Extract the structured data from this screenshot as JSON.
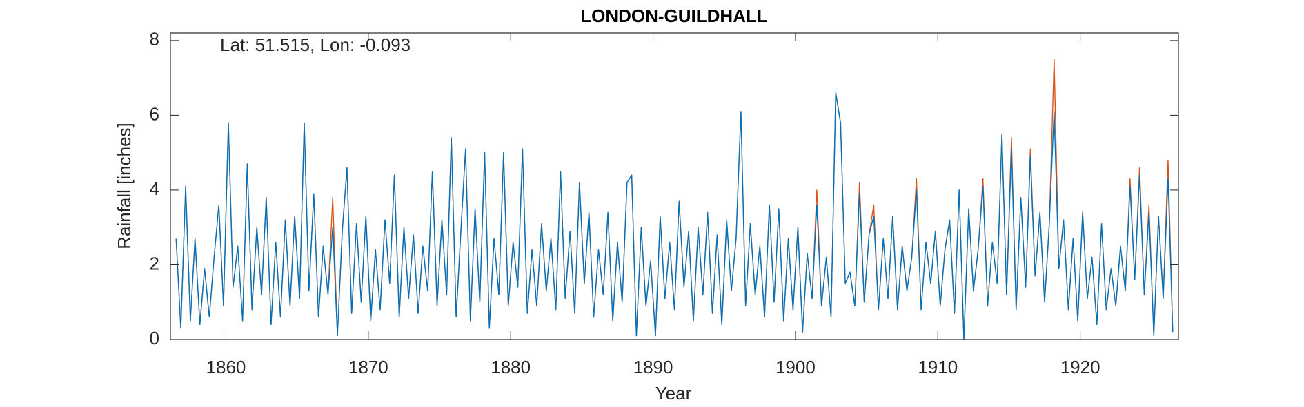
{
  "chart_data": {
    "type": "line",
    "title": "LONDON-GUILDHALL",
    "annotation": "Lat: 51.515, Lon: -0.093",
    "xlabel": "Year",
    "ylabel": "Rainfall [inches]",
    "xlim": [
      1856.1,
      1926.9
    ],
    "ylim": [
      0,
      8.2
    ],
    "xticks": [
      1860,
      1870,
      1880,
      1890,
      1900,
      1910,
      1920
    ],
    "yticks": [
      0,
      2,
      4,
      6,
      8
    ],
    "x": [
      1856.5,
      1856.83,
      1857.17,
      1857.5,
      1857.83,
      1858.17,
      1858.5,
      1858.83,
      1859.17,
      1859.5,
      1859.83,
      1860.17,
      1860.5,
      1860.83,
      1861.17,
      1861.5,
      1861.83,
      1862.17,
      1862.5,
      1862.83,
      1863.17,
      1863.5,
      1863.83,
      1864.17,
      1864.5,
      1864.83,
      1865.17,
      1865.5,
      1865.83,
      1866.17,
      1866.5,
      1866.83,
      1867.17,
      1867.5,
      1867.83,
      1868.17,
      1868.5,
      1868.83,
      1869.17,
      1869.5,
      1869.83,
      1870.17,
      1870.5,
      1870.83,
      1871.17,
      1871.5,
      1871.83,
      1872.17,
      1872.5,
      1872.83,
      1873.17,
      1873.5,
      1873.83,
      1874.17,
      1874.5,
      1874.83,
      1875.17,
      1875.5,
      1875.83,
      1876.17,
      1876.5,
      1876.83,
      1877.17,
      1877.5,
      1877.83,
      1878.17,
      1878.5,
      1878.83,
      1879.17,
      1879.5,
      1879.83,
      1880.17,
      1880.5,
      1880.83,
      1881.17,
      1881.5,
      1881.83,
      1882.17,
      1882.5,
      1882.83,
      1883.17,
      1883.5,
      1883.83,
      1884.17,
      1884.5,
      1884.83,
      1885.17,
      1885.5,
      1885.83,
      1886.17,
      1886.5,
      1886.83,
      1887.17,
      1887.5,
      1887.83,
      1888.17,
      1888.5,
      1888.83,
      1889.17,
      1889.5,
      1889.83,
      1890.17,
      1890.5,
      1890.83,
      1891.17,
      1891.5,
      1891.83,
      1892.17,
      1892.5,
      1892.83,
      1893.17,
      1893.5,
      1893.83,
      1894.17,
      1894.5,
      1894.83,
      1895.17,
      1895.5,
      1895.83,
      1896.17,
      1896.5,
      1896.83,
      1897.17,
      1897.5,
      1897.83,
      1898.17,
      1898.5,
      1898.83,
      1899.17,
      1899.5,
      1899.83,
      1900.17,
      1900.5,
      1900.83,
      1901.17,
      1901.5,
      1901.83,
      1902.17,
      1902.5,
      1902.83,
      1903.17,
      1903.5,
      1903.83,
      1904.17,
      1904.5,
      1904.83,
      1905.17,
      1905.5,
      1905.83,
      1906.17,
      1906.5,
      1906.83,
      1907.17,
      1907.5,
      1907.83,
      1908.17,
      1908.5,
      1908.83,
      1909.17,
      1909.5,
      1909.83,
      1910.17,
      1910.5,
      1910.83,
      1911.17,
      1911.5,
      1911.83,
      1912.17,
      1912.5,
      1912.83,
      1913.17,
      1913.5,
      1913.83,
      1914.17,
      1914.5,
      1914.83,
      1915.17,
      1915.5,
      1915.83,
      1916.17,
      1916.5,
      1916.83,
      1917.17,
      1917.5,
      1917.83,
      1918.17,
      1918.5,
      1918.83,
      1919.17,
      1919.5,
      1919.83,
      1920.17,
      1920.5,
      1920.83,
      1921.17,
      1921.5,
      1921.83,
      1922.17,
      1922.5,
      1922.83,
      1923.17,
      1923.5,
      1923.83,
      1924.17,
      1924.5,
      1924.83,
      1925.17,
      1925.5,
      1925.83,
      1926.17,
      1926.5
    ],
    "series": [
      {
        "color": "#d95319",
        "values": [
          2.7,
          0.3,
          4.1,
          0.5,
          2.7,
          0.4,
          1.9,
          0.6,
          2.2,
          3.6,
          0.9,
          5.8,
          1.4,
          2.5,
          0.5,
          4.7,
          0.8,
          3.0,
          1.2,
          3.8,
          0.4,
          2.6,
          0.6,
          3.2,
          0.9,
          3.3,
          1.1,
          5.8,
          1.3,
          3.9,
          0.6,
          2.5,
          1.2,
          3.8,
          0.1,
          2.9,
          4.6,
          0.7,
          3.1,
          1.0,
          3.3,
          0.5,
          2.4,
          0.8,
          3.2,
          1.5,
          4.4,
          0.6,
          3.0,
          1.1,
          2.8,
          0.7,
          2.5,
          1.3,
          4.5,
          0.9,
          3.2,
          1.2,
          5.4,
          0.6,
          2.9,
          5.1,
          0.5,
          3.5,
          1.0,
          5.0,
          0.3,
          2.7,
          1.2,
          5.0,
          0.9,
          2.6,
          1.4,
          5.1,
          0.7,
          2.4,
          0.9,
          3.1,
          1.3,
          2.7,
          0.8,
          4.5,
          1.1,
          2.9,
          0.7,
          4.2,
          1.5,
          3.4,
          0.6,
          2.4,
          1.2,
          3.4,
          0.5,
          2.6,
          1.0,
          4.2,
          4.4,
          0.1,
          3.0,
          0.9,
          2.1,
          0.1,
          3.3,
          1.1,
          2.6,
          0.8,
          3.7,
          1.4,
          2.9,
          0.5,
          3.0,
          1.2,
          3.4,
          0.7,
          2.8,
          0.4,
          3.2,
          1.3,
          2.7,
          6.1,
          0.9,
          3.1,
          1.2,
          2.5,
          0.6,
          3.6,
          1.0,
          3.5,
          0.5,
          2.7,
          0.8,
          3.0,
          0.2,
          2.3,
          1.1,
          4.0,
          0.9,
          2.2,
          0.6,
          6.6,
          5.8,
          1.5,
          1.8,
          0.9,
          4.2,
          1.0,
          2.8,
          3.6,
          0.8,
          2.7,
          1.1,
          3.3,
          0.8,
          2.5,
          1.3,
          2.2,
          4.3,
          0.8,
          2.6,
          1.5,
          2.9,
          0.9,
          2.4,
          3.2,
          0.7,
          4.0,
          0.0,
          3.5,
          1.3,
          2.4,
          4.3,
          0.9,
          2.6,
          1.5,
          5.5,
          1.2,
          5.4,
          0.8,
          3.8,
          1.4,
          5.1,
          1.7,
          3.4,
          1.0,
          3.1,
          7.5,
          1.9,
          3.2,
          0.8,
          2.7,
          0.5,
          3.4,
          1.1,
          2.2,
          0.4,
          3.1,
          0.8,
          1.9,
          0.9,
          2.5,
          1.3,
          4.3,
          1.6,
          4.6,
          1.2,
          3.6,
          0.1,
          3.3,
          1.1,
          4.8,
          0.2
        ]
      },
      {
        "color": "#0072bd",
        "values": [
          2.7,
          0.3,
          4.1,
          0.5,
          2.7,
          0.4,
          1.9,
          0.6,
          2.2,
          3.6,
          0.9,
          5.8,
          1.4,
          2.5,
          0.5,
          4.7,
          0.8,
          3.0,
          1.2,
          3.8,
          0.4,
          2.6,
          0.6,
          3.2,
          0.9,
          3.3,
          1.1,
          5.8,
          1.3,
          3.9,
          0.6,
          2.5,
          1.2,
          3.0,
          0.1,
          2.9,
          4.6,
          0.7,
          3.1,
          1.0,
          3.3,
          0.5,
          2.4,
          0.8,
          3.2,
          1.5,
          4.4,
          0.6,
          3.0,
          1.1,
          2.8,
          0.7,
          2.5,
          1.3,
          4.5,
          0.9,
          3.2,
          1.2,
          5.4,
          0.6,
          2.9,
          5.1,
          0.5,
          3.5,
          1.0,
          5.0,
          0.3,
          2.7,
          1.2,
          5.0,
          0.9,
          2.6,
          1.4,
          5.1,
          0.7,
          2.4,
          0.9,
          3.1,
          1.3,
          2.7,
          0.8,
          4.5,
          1.1,
          2.9,
          0.7,
          4.2,
          1.5,
          3.4,
          0.6,
          2.4,
          1.2,
          3.4,
          0.5,
          2.6,
          1.0,
          4.2,
          4.4,
          0.1,
          3.0,
          0.9,
          2.1,
          0.1,
          3.3,
          1.1,
          2.6,
          0.8,
          3.7,
          1.4,
          2.9,
          0.5,
          3.0,
          1.2,
          3.4,
          0.7,
          2.8,
          0.4,
          3.2,
          1.3,
          2.7,
          6.1,
          0.9,
          3.1,
          1.2,
          2.5,
          0.6,
          3.6,
          1.0,
          3.5,
          0.5,
          2.7,
          0.8,
          3.0,
          0.2,
          2.3,
          1.1,
          3.6,
          0.9,
          2.2,
          0.6,
          6.6,
          5.8,
          1.5,
          1.8,
          0.9,
          3.9,
          1.0,
          2.8,
          3.3,
          0.8,
          2.7,
          1.1,
          3.3,
          0.8,
          2.5,
          1.3,
          2.2,
          4.0,
          0.8,
          2.6,
          1.5,
          2.9,
          0.9,
          2.4,
          3.2,
          0.7,
          4.0,
          0.0,
          3.5,
          1.3,
          2.4,
          4.1,
          0.9,
          2.6,
          1.5,
          5.5,
          1.2,
          5.1,
          0.8,
          3.8,
          1.4,
          4.9,
          1.7,
          3.4,
          1.0,
          3.1,
          6.1,
          1.9,
          3.2,
          0.8,
          2.7,
          0.5,
          3.4,
          1.1,
          2.2,
          0.4,
          3.1,
          0.8,
          1.9,
          0.9,
          2.5,
          1.3,
          4.1,
          1.6,
          4.4,
          1.2,
          3.4,
          0.1,
          3.3,
          1.1,
          4.3,
          0.2
        ]
      }
    ]
  }
}
